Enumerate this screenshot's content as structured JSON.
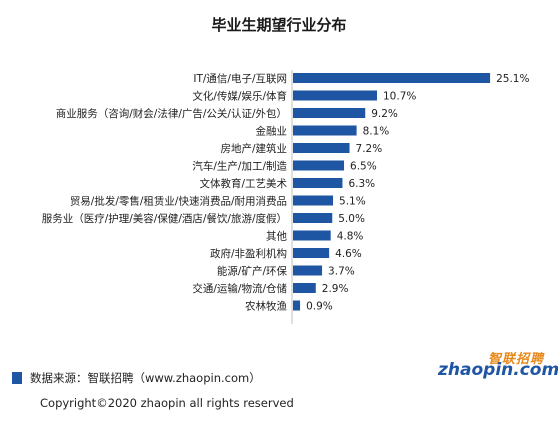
{
  "chart_data": {
    "type": "bar",
    "orientation": "horizontal",
    "title": "毕业生期望行业分布",
    "categories": [
      "IT/通信/电子/互联网",
      "文化/传媒/娱乐/体育",
      "商业服务（咨询/财会/法律/广告/公关/认证/外包）",
      "金融业",
      "房地产/建筑业",
      "汽车/生产/加工/制造",
      "文体教育/工艺美术",
      "贸易/批发/零售/租赁业/快速消费品/耐用消费品",
      "服务业（医疗/护理/美容/保健/酒店/餐饮/旅游/度假）",
      "其他",
      "政府/非盈利机构",
      "能源/矿产/环保",
      "交通/运输/物流/仓储",
      "农林牧渔"
    ],
    "values": [
      25.1,
      10.7,
      9.2,
      8.1,
      7.2,
      6.5,
      6.3,
      5.1,
      5.0,
      4.8,
      4.6,
      3.7,
      2.9,
      0.9
    ],
    "value_labels": [
      "25.1%",
      "10.7%",
      "9.2%",
      "8.1%",
      "7.2%",
      "6.5%",
      "6.3%",
      "5.1%",
      "5.0%",
      "4.8%",
      "4.6%",
      "3.7%",
      "2.9%",
      "0.9%"
    ],
    "unit": "%",
    "xlim": [
      0,
      27
    ],
    "grid": false,
    "legend": "none",
    "bar_color": "#1f56a3"
  },
  "footer": {
    "source": "数据来源：智联招聘（www.zhaopin.com）",
    "copyright": "Copyright©2020 zhaopin all rights reserved"
  },
  "logo": {
    "cn": "智联招聘",
    "en": "zhaopin.com"
  }
}
